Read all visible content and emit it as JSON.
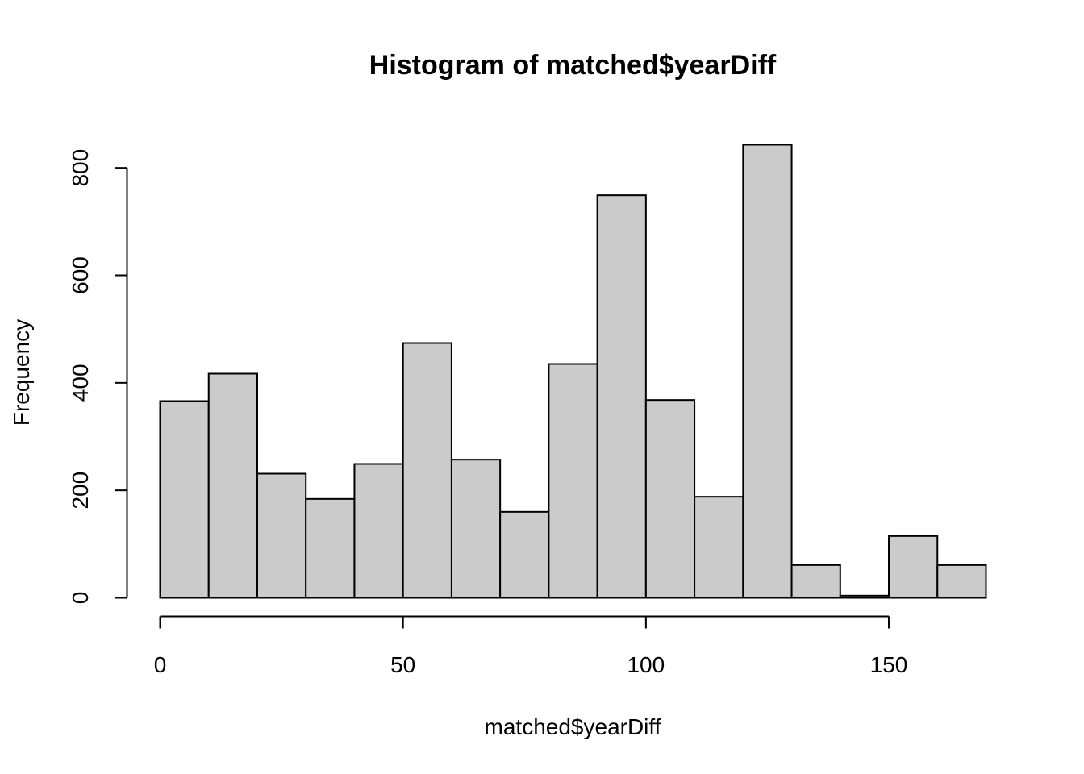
{
  "chart_data": {
    "type": "bar",
    "title": "Histogram of matched$yearDiff",
    "xlabel": "matched$yearDiff",
    "ylabel": "Frequency",
    "bin_edges": [
      0,
      10,
      20,
      30,
      40,
      50,
      60,
      70,
      80,
      90,
      100,
      110,
      120,
      130,
      140,
      150,
      160,
      170
    ],
    "values": [
      366,
      417,
      231,
      184,
      249,
      474,
      257,
      160,
      435,
      749,
      368,
      188,
      843,
      61,
      4,
      115,
      61
    ],
    "x_ticks": [
      0,
      50,
      100,
      150
    ],
    "y_ticks": [
      0,
      200,
      400,
      600,
      800
    ],
    "xlim": [
      0,
      170
    ],
    "ylim": [
      0,
      843
    ],
    "grid": false
  }
}
